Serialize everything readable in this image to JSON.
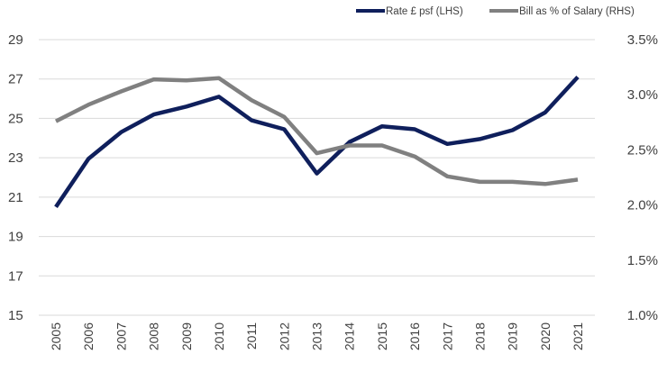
{
  "chart_data": {
    "type": "line",
    "title": "",
    "xlabel": "",
    "ylabel": "",
    "ylabel_right": "",
    "categories": [
      "2005",
      "2006",
      "2007",
      "2008",
      "2009",
      "2010",
      "2011",
      "2012",
      "2013",
      "2014",
      "2015",
      "2016",
      "2017",
      "2018",
      "2019",
      "2020",
      "2021"
    ],
    "ylim": [
      15,
      29
    ],
    "yticks": [
      "15",
      "17",
      "19",
      "21",
      "23",
      "25",
      "27",
      "29"
    ],
    "ylim_right": [
      1.0,
      3.5
    ],
    "yticks_right": [
      "1.0%",
      "1.5%",
      "2.0%",
      "2.5%",
      "3.0%",
      "3.5%"
    ],
    "grid": true,
    "legend_position": "top-right",
    "series": [
      {
        "name": "Rate £ psf (LHS)",
        "axis": "left",
        "color": "#0f1f5c",
        "values": [
          20.5,
          22.95,
          24.3,
          25.2,
          25.6,
          26.1,
          24.9,
          24.45,
          22.2,
          23.8,
          24.6,
          24.45,
          23.7,
          23.95,
          24.4,
          25.3,
          27.1
        ]
      },
      {
        "name": "Bill as % of Salary (RHS)",
        "axis": "right",
        "color": "#808080",
        "values": [
          2.76,
          2.91,
          3.03,
          3.14,
          3.13,
          3.15,
          2.95,
          2.8,
          2.47,
          2.54,
          2.54,
          2.44,
          2.26,
          2.21,
          2.21,
          2.19,
          2.23
        ]
      }
    ]
  }
}
